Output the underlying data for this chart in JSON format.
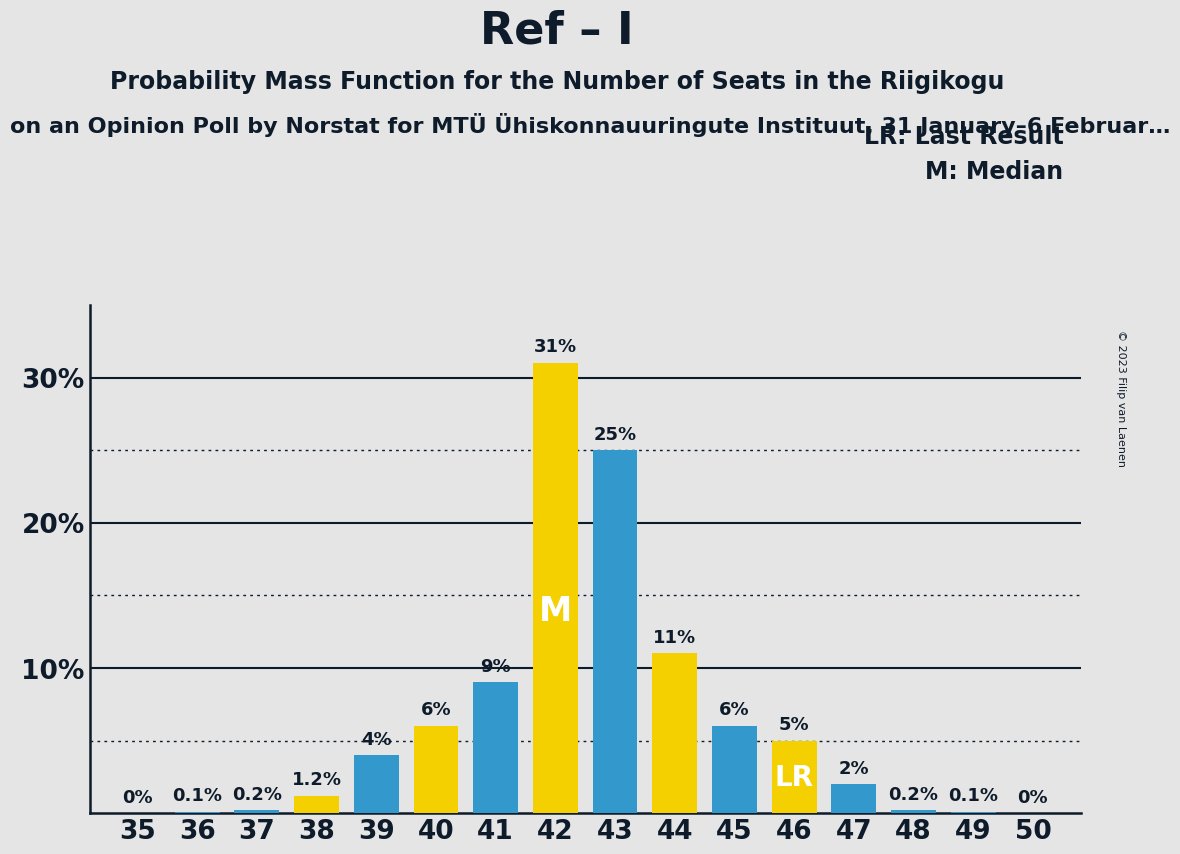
{
  "title": "Ref – I",
  "subtitle1": "Probability Mass Function for the Number of Seats in the Riigikogu",
  "subtitle2": "on an Opinion Poll by Norstat for MTÜ Ühiskonnauuringute Instituut, 31 January–6 Februar…",
  "copyright": "© 2023 Filip van Laenen",
  "legend_lr": "LR: Last Result",
  "legend_m": "M: Median",
  "seats": [
    35,
    36,
    37,
    38,
    39,
    40,
    41,
    42,
    43,
    44,
    45,
    46,
    47,
    48,
    49,
    50
  ],
  "values": [
    0.0,
    0.1,
    0.2,
    1.2,
    4.0,
    6.0,
    9.0,
    31.0,
    25.0,
    11.0,
    6.0,
    5.0,
    2.0,
    0.2,
    0.1,
    0.0
  ],
  "labels": [
    "0%",
    "0.1%",
    "0.2%",
    "1.2%",
    "4%",
    "6%",
    "9%",
    "31%",
    "25%",
    "11%",
    "6%",
    "5%",
    "2%",
    "0.2%",
    "0.1%",
    "0%"
  ],
  "colors": [
    "#3399CC",
    "#3399CC",
    "#3399CC",
    "#F5D000",
    "#3399CC",
    "#F5D000",
    "#3399CC",
    "#F5D000",
    "#3399CC",
    "#F5D000",
    "#3399CC",
    "#F5D000",
    "#3399CC",
    "#3399CC",
    "#3399CC",
    "#3399CC"
  ],
  "median_seat": 42,
  "lr_seat": 46,
  "bg_color": "#E5E5E5",
  "title_color": "#0D1B2A",
  "bar_yellow": "#F5D000",
  "bar_blue": "#3399CC",
  "label_fontsize": 13,
  "tick_fontsize": 19,
  "title_fontsize": 32,
  "subtitle1_fontsize": 17,
  "subtitle2_fontsize": 16,
  "legend_fontsize": 17
}
